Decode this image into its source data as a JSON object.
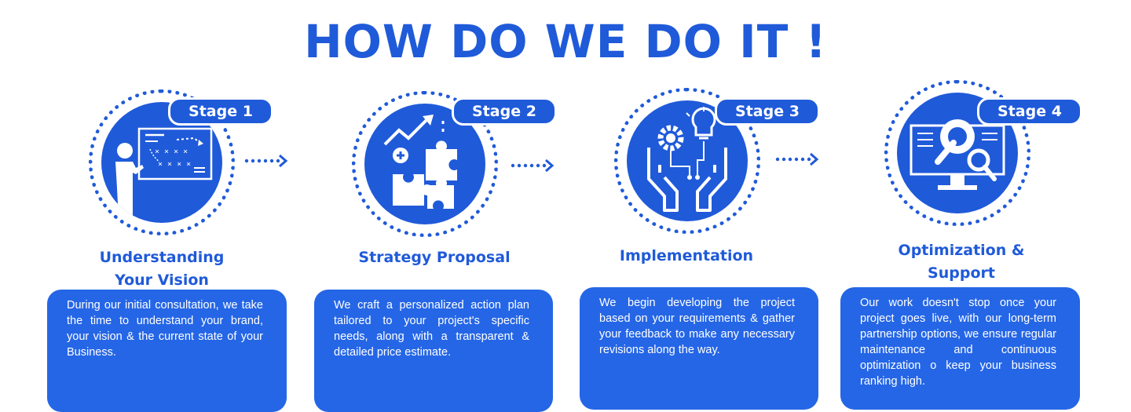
{
  "title": "HOW DO WE DO IT !",
  "colors": {
    "primary": "#1f5ad9",
    "card": "#2566e6",
    "text_on_blue": "#ffffff"
  },
  "stages": [
    {
      "badge": "Stage 1",
      "title": "Understanding\nYour Vision",
      "icon": "presentation-board-icon",
      "description": "During our initial consultation, we take the time to understand your brand, your vision & the current state of your Business."
    },
    {
      "badge": "Stage 2",
      "title": "Strategy Proposal",
      "icon": "puzzle-growth-icon",
      "description": "We craft a personalized action plan tailored to your project's specific needs, along with a transparent & detailed price estimate."
    },
    {
      "badge": "Stage 3",
      "title": "Implementation",
      "icon": "hands-gear-bulb-icon",
      "description": "We begin developing the project based on your requirements & gather your feedback to make any necessary revisions along the way."
    },
    {
      "badge": "Stage 4",
      "title": "Optimization &\nSupport",
      "icon": "monitor-wrench-icon",
      "description": "Our work doesn't stop once your project goes live, with our long-term partnership options, we ensure regular maintenance and continuous optimization o keep your business ranking high."
    }
  ]
}
